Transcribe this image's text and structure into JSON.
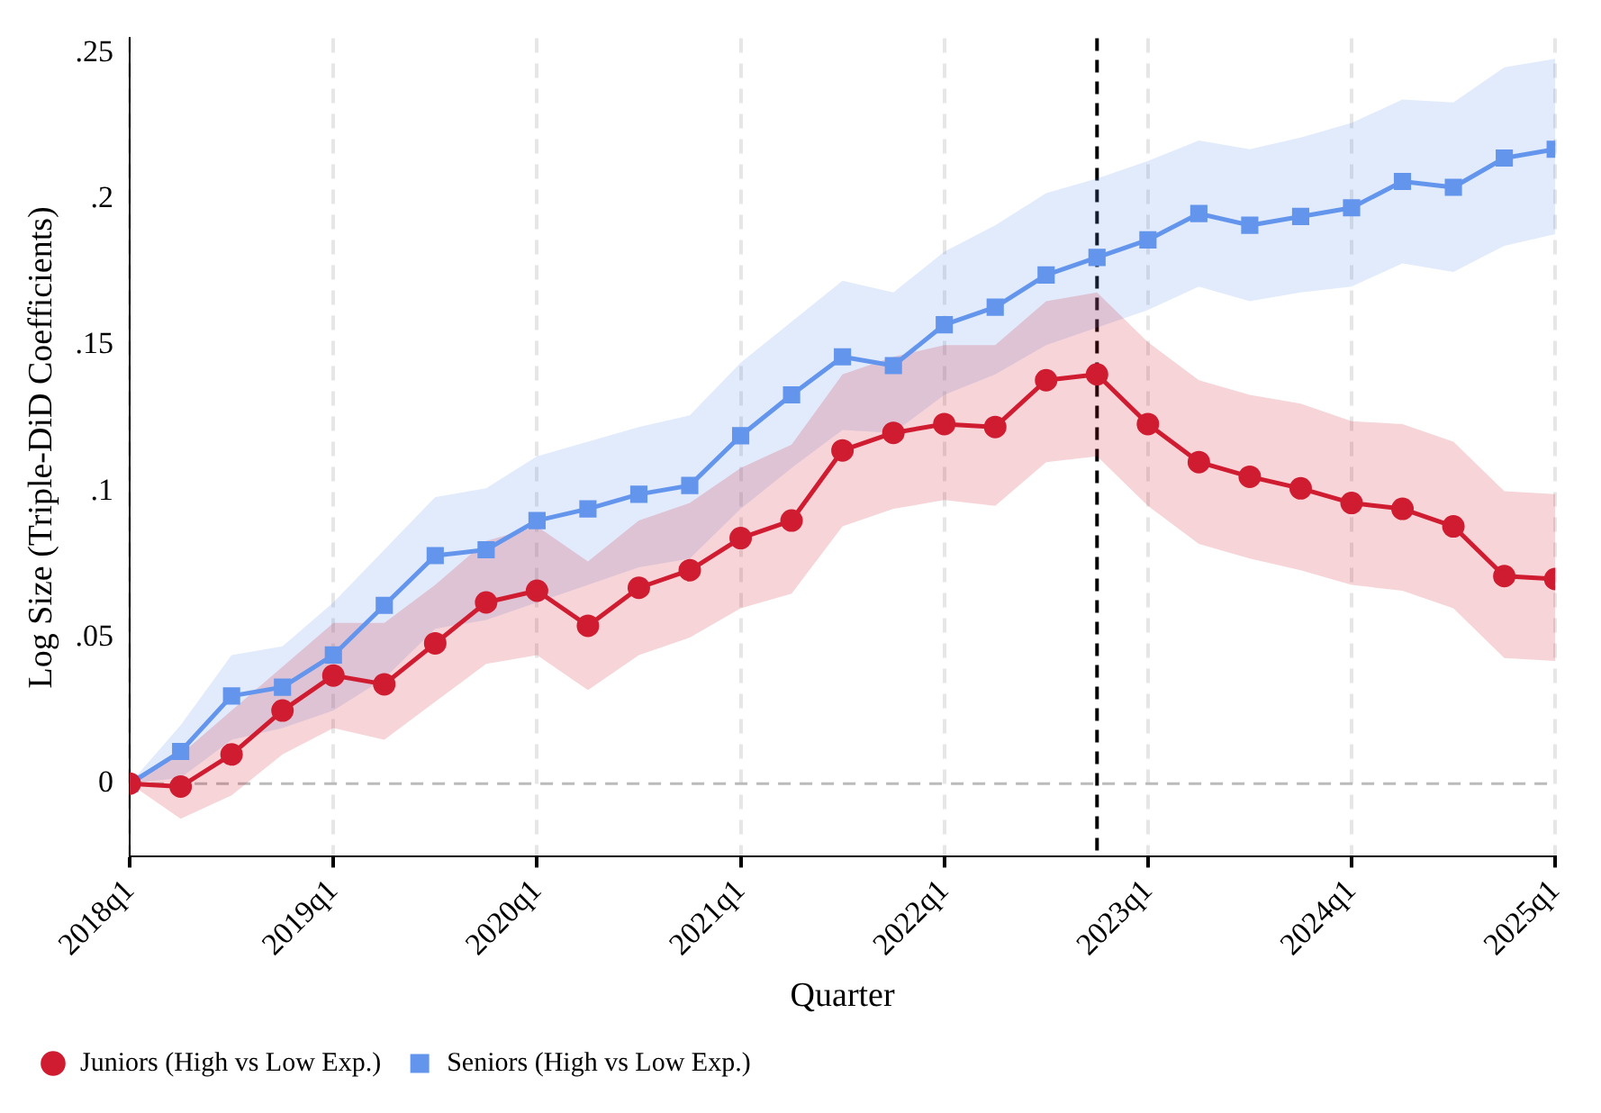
{
  "chart_data": {
    "type": "line",
    "xlabel": "Quarter",
    "ylabel": "Log Size (Triple-DiD Coefficients)",
    "x": [
      "2018-01",
      "2018-04",
      "2018-07",
      "2018-10",
      "2019-01",
      "2019-04",
      "2019-07",
      "2019-10",
      "2020-01",
      "2020-04",
      "2020-07",
      "2020-10",
      "2021-01",
      "2021-04",
      "2021-07",
      "2021-10",
      "2022-01",
      "2022-04",
      "2022-07",
      "2022-10",
      "2023-01",
      "2023-04",
      "2023-07",
      "2023-10",
      "2024-01",
      "2024-04",
      "2024-07",
      "2024-10",
      "2025-01"
    ],
    "series": [
      {
        "name": "Juniors (High vs Low Exp.)",
        "color": "#d01c30",
        "marker": "circle",
        "values": [
          0,
          -0.001,
          0.01,
          0.025,
          0.037,
          0.034,
          0.048,
          0.062,
          0.066,
          0.054,
          0.067,
          0.073,
          0.084,
          0.09,
          0.114,
          0.12,
          0.123,
          0.122,
          0.138,
          0.14,
          0.123,
          0.11,
          0.105,
          0.101,
          0.096,
          0.094,
          0.088,
          0.071,
          0.07
        ],
        "lower": [
          0,
          -0.012,
          -0.004,
          0.01,
          0.019,
          0.015,
          0.028,
          0.041,
          0.044,
          0.032,
          0.044,
          0.05,
          0.06,
          0.065,
          0.088,
          0.094,
          0.097,
          0.095,
          0.11,
          0.112,
          0.095,
          0.082,
          0.077,
          0.073,
          0.068,
          0.066,
          0.06,
          0.043,
          0.042
        ],
        "upper": [
          0,
          0.01,
          0.025,
          0.04,
          0.055,
          0.055,
          0.068,
          0.083,
          0.088,
          0.076,
          0.09,
          0.096,
          0.108,
          0.116,
          0.14,
          0.146,
          0.15,
          0.15,
          0.165,
          0.168,
          0.151,
          0.138,
          0.133,
          0.13,
          0.124,
          0.123,
          0.117,
          0.1,
          0.099
        ]
      },
      {
        "name": "Seniors (High vs Low Exp.)",
        "color": "#6495ed",
        "marker": "square",
        "values": [
          0,
          0.011,
          0.03,
          0.033,
          0.044,
          0.061,
          0.078,
          0.08,
          0.09,
          0.094,
          0.099,
          0.102,
          0.119,
          0.133,
          0.146,
          0.143,
          0.157,
          0.163,
          0.174,
          0.18,
          0.186,
          0.195,
          0.191,
          0.194,
          0.197,
          0.206,
          0.204,
          0.214,
          0.217
        ],
        "lower": [
          0,
          0.002,
          0.015,
          0.019,
          0.025,
          0.036,
          0.053,
          0.056,
          0.062,
          0.068,
          0.074,
          0.077,
          0.094,
          0.108,
          0.121,
          0.12,
          0.133,
          0.14,
          0.15,
          0.156,
          0.162,
          0.17,
          0.165,
          0.168,
          0.17,
          0.178,
          0.175,
          0.184,
          0.188
        ],
        "upper": [
          0,
          0.02,
          0.044,
          0.047,
          0.062,
          0.08,
          0.098,
          0.101,
          0.112,
          0.117,
          0.122,
          0.126,
          0.144,
          0.158,
          0.172,
          0.168,
          0.182,
          0.191,
          0.202,
          0.207,
          0.213,
          0.22,
          0.217,
          0.221,
          0.226,
          0.234,
          0.233,
          0.245,
          0.248
        ]
      }
    ],
    "xlim": [
      "2018-01",
      "2025-01"
    ],
    "xticks": [
      {
        "value": "2018-01",
        "label": "2018q1"
      },
      {
        "value": "2019-01",
        "label": "2019q1"
      },
      {
        "value": "2020-01",
        "label": "2020q1"
      },
      {
        "value": "2021-01",
        "label": "2021q1"
      },
      {
        "value": "2022-01",
        "label": "2022q1"
      },
      {
        "value": "2023-01",
        "label": "2023q1"
      },
      {
        "value": "2024-01",
        "label": "2024q1"
      },
      {
        "value": "2025-01",
        "label": "2025q1"
      }
    ],
    "ylim": [
      -0.025,
      0.255
    ],
    "yticks": [
      0,
      {
        "value": 0.05,
        "label": ".05"
      },
      {
        "value": 0.1,
        "label": ".1"
      },
      {
        "value": 0.15,
        "label": ".15"
      },
      {
        "value": 0.2,
        "label": ".2"
      },
      {
        "value": 0.25,
        "label": ".25"
      }
    ],
    "grid": "x",
    "legend": "bottom left",
    "line_style": "solid",
    "ref_lines": [
      {
        "axis": "x",
        "value": "2022-10",
        "color": "#000000",
        "line_style": "dashed"
      },
      {
        "axis": "y",
        "value": 0,
        "color": "#bbbbbb",
        "line_style": "dashed"
      }
    ]
  }
}
